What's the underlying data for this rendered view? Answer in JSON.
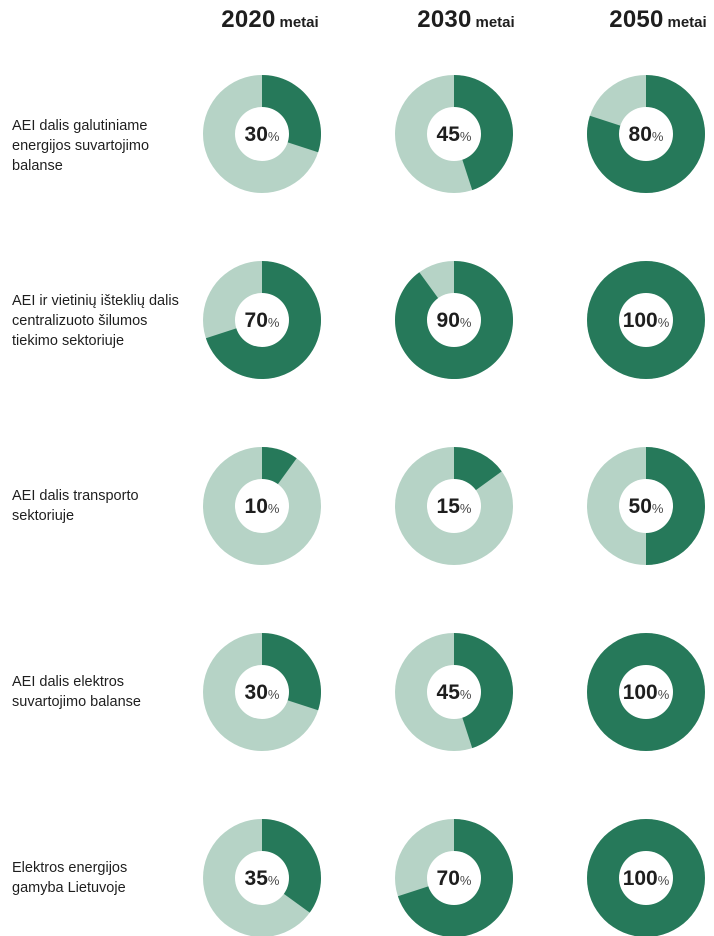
{
  "colors": {
    "filled": "#26795a",
    "remainder": "#b6d3c6",
    "hole": "#ffffff"
  },
  "chart_data": {
    "type": "pie",
    "variant": "donut-grid",
    "title": "",
    "columns": [
      {
        "year": "2020",
        "unit": "metai"
      },
      {
        "year": "2030",
        "unit": "metai"
      },
      {
        "year": "2050",
        "unit": "metai"
      }
    ],
    "percent_sign": "%",
    "max": 100,
    "rows": [
      {
        "label_lines": [
          "AEI dalis galutiniame",
          "energijos  suvartojimo",
          "balanse"
        ],
        "values": [
          30,
          45,
          80
        ]
      },
      {
        "label_lines": [
          "AEI ir vietinių išteklių dalis",
          "centralizuoto šilumos",
          "tiekimo sektoriuje"
        ],
        "values": [
          70,
          90,
          100
        ]
      },
      {
        "label_lines": [
          "AEI dalis transporto",
          "sektoriuje"
        ],
        "values": [
          10,
          15,
          50
        ]
      },
      {
        "label_lines": [
          "AEI dalis elektros",
          "suvartojimo balanse"
        ],
        "values": [
          30,
          45,
          100
        ]
      },
      {
        "label_lines": [
          "Elektros energijos",
          "gamyba Lietuvoje"
        ],
        "values": [
          35,
          70,
          100
        ]
      }
    ]
  }
}
